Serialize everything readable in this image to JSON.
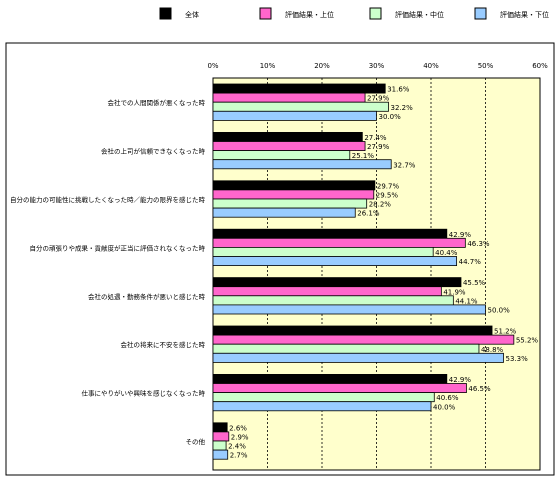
{
  "chart_data": {
    "type": "bar",
    "orientation": "horizontal",
    "categories": [
      "会社での人間関係が悪くなった時",
      "会社の上司が信頼できなくなった時",
      "自分の能力の可能性に挑戦したくなった時／能力の限界を感じた時",
      "自分の頑張りや成果・貢献度が正当に評価されなくなった時",
      "会社の処遇・勤務条件が悪いと感じた時",
      "会社の将来に不安を感じた時",
      "仕事にやりがいや興味を感じなくなった時",
      "その他"
    ],
    "series": [
      {
        "name": "全体",
        "color": "#000000",
        "values": [
          31.6,
          27.4,
          29.7,
          42.9,
          45.5,
          51.2,
          42.9,
          2.6
        ]
      },
      {
        "name": "評価結果・上位",
        "color": "#ff66cc",
        "values": [
          27.9,
          27.9,
          29.5,
          46.3,
          41.9,
          55.2,
          46.5,
          2.9
        ]
      },
      {
        "name": "評価結果・中位",
        "color": "#ccffcc",
        "values": [
          32.2,
          25.1,
          28.2,
          40.4,
          44.1,
          48.8,
          40.6,
          2.4
        ]
      },
      {
        "name": "評価結果・下位",
        "color": "#99ccff",
        "values": [
          30.0,
          32.7,
          26.1,
          44.7,
          50.0,
          53.3,
          40.0,
          2.7
        ]
      }
    ],
    "xlim": [
      0,
      60
    ],
    "ticks": [
      0,
      10,
      20,
      30,
      40,
      50,
      60
    ],
    "tick_labels": [
      "0%",
      "10%",
      "20%",
      "30%",
      "40%",
      "50%",
      "60%"
    ],
    "value_labels": [
      [
        "31.6%",
        "27.4%",
        "29.7%",
        "42.9%",
        "45.5%",
        "51.2%",
        "42.9%",
        "2.6%"
      ],
      [
        "27.9%",
        "27.9%",
        "29.5%",
        "46.3%",
        "41.9%",
        "55.2%",
        "46.5%",
        "2.9%"
      ],
      [
        "32.2%",
        "25.1%",
        "28.2%",
        "40.4%",
        "44.1%",
        "48.8%",
        "40.6%",
        "2.4%"
      ],
      [
        "30.0%",
        "32.7%",
        "26.1%",
        "44.7%",
        "50.0%",
        "53.3%",
        "40.0%",
        "2.7%"
      ]
    ],
    "grid": true,
    "plot_background": "#ffffcc",
    "legend_position": "top"
  }
}
